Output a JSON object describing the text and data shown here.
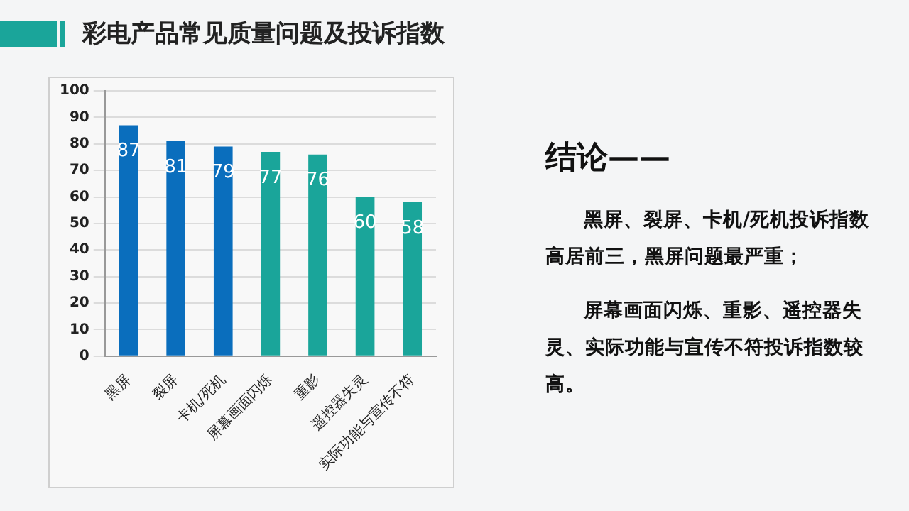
{
  "chart_data": {
    "type": "bar",
    "title": "彩电产品常见质量问题及投诉指数",
    "categories": [
      "黑屏",
      "裂屏",
      "卡机/死机",
      "屏幕画面闪烁",
      "重影",
      "遥控器失灵",
      "实际功能与宣传不符"
    ],
    "values": [
      87,
      81,
      79,
      77,
      76,
      60,
      58
    ],
    "colors": [
      "#0a6ebd",
      "#0a6ebd",
      "#0a6ebd",
      "#1aa59a",
      "#1aa59a",
      "#1aa59a",
      "#1aa59a"
    ],
    "ylim": [
      0,
      100
    ],
    "yticks": [
      0,
      10,
      20,
      30,
      40,
      50,
      60,
      70,
      80,
      90,
      100
    ],
    "grid": "y",
    "legend": false,
    "data_labels": true,
    "annotations": [
      "结论——",
      "黑屏、裂屏、卡机/死机投诉指数高居前三，黑屏问题最严重；",
      "屏幕画面闪烁、重影、遥控器失灵、实际功能与宣传不符投诉指数较高。"
    ]
  }
}
